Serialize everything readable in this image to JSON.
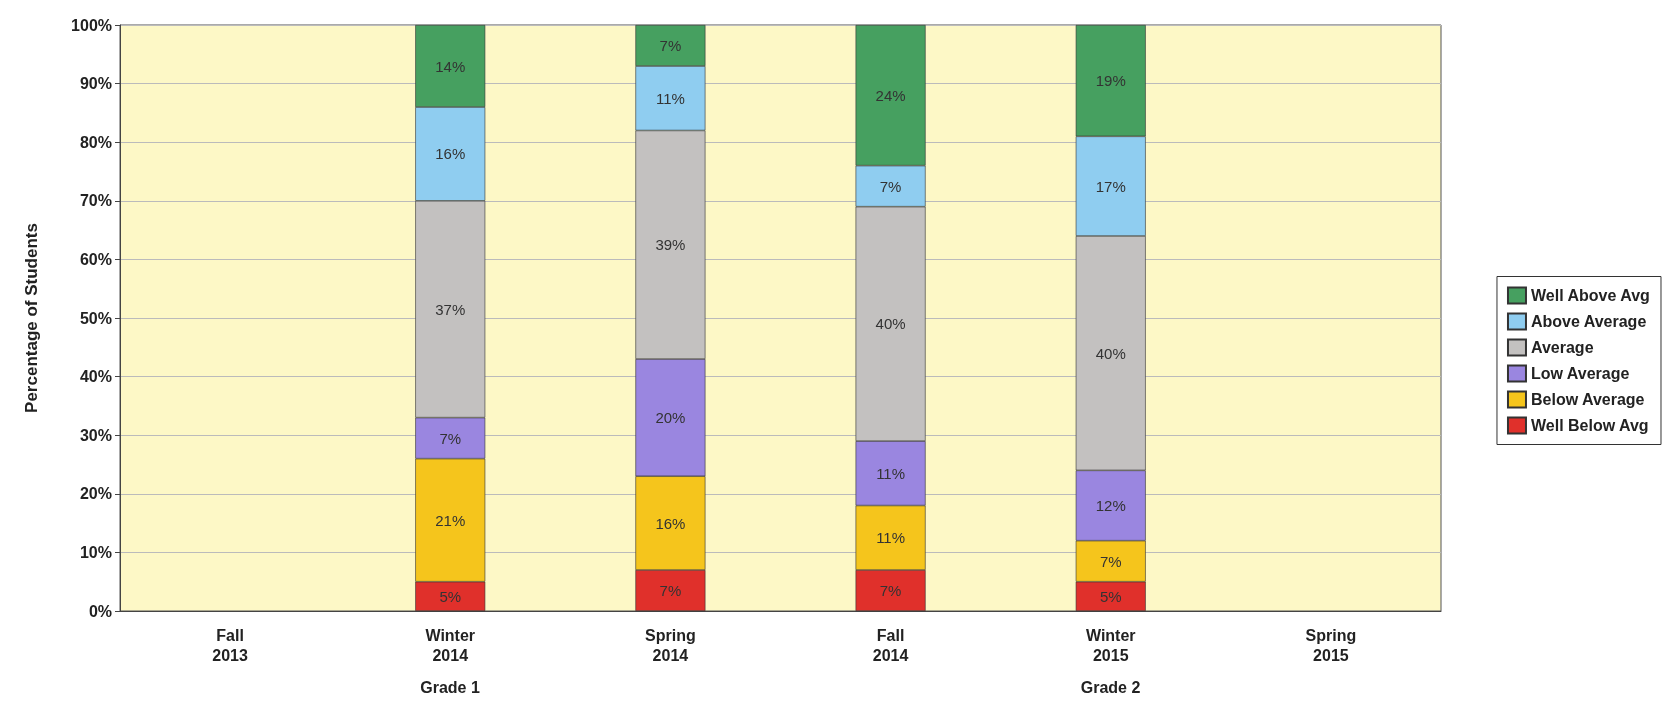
{
  "chart_data": {
    "type": "bar",
    "stacked": true,
    "ylabel": "Percentage of Students",
    "categories": [
      "Fall\n2013",
      "Winter\n2014",
      "Spring\n2014",
      "Fall\n2014",
      "Winter\n2015",
      "Spring\n2015"
    ],
    "series": [
      {
        "name": "Well Below Avg",
        "color": "#e0302b",
        "values": [
          null,
          5,
          7,
          7,
          5,
          null
        ],
        "value_labels": [
          null,
          "5%",
          "7%",
          "7%",
          "5%",
          null
        ]
      },
      {
        "name": "Below Average",
        "color": "#f5c51c",
        "values": [
          null,
          21,
          16,
          11,
          7,
          null
        ],
        "value_labels": [
          null,
          "21%",
          "16%",
          "11%",
          "7%",
          null
        ]
      },
      {
        "name": "Low Average",
        "color": "#9a86e0",
        "values": [
          null,
          7,
          20,
          11,
          12,
          null
        ],
        "value_labels": [
          null,
          "7%",
          "20%",
          "11%",
          "12%",
          null
        ]
      },
      {
        "name": "Average",
        "color": "#c3c1c0",
        "values": [
          null,
          37,
          39,
          40,
          40,
          null
        ],
        "value_labels": [
          null,
          "37%",
          "39%",
          "40%",
          "40%",
          null
        ]
      },
      {
        "name": "Above Average",
        "color": "#8fcdf0",
        "values": [
          null,
          16,
          11,
          7,
          17,
          null
        ],
        "value_labels": [
          null,
          "16%",
          "11%",
          "7%",
          "17%",
          null
        ]
      },
      {
        "name": "Well Above Avg",
        "color": "#46a060",
        "values": [
          null,
          14,
          7,
          24,
          19,
          null
        ],
        "value_labels": [
          null,
          "14%",
          "7%",
          "24%",
          "19%",
          null
        ]
      }
    ],
    "ylim": [
      0,
      100
    ],
    "yticks": [
      {
        "value": 0,
        "label": "0%"
      },
      {
        "value": 10,
        "label": "10%"
      },
      {
        "value": 20,
        "label": "20%"
      },
      {
        "value": 30,
        "label": "30%"
      },
      {
        "value": 40,
        "label": "40%"
      },
      {
        "value": 50,
        "label": "50%"
      },
      {
        "value": 60,
        "label": "60%"
      },
      {
        "value": 70,
        "label": "70%"
      },
      {
        "value": 80,
        "label": "80%"
      },
      {
        "value": 90,
        "label": "90%"
      },
      {
        "value": 100,
        "label": "100%"
      }
    ],
    "annotations": [
      "Grade 1",
      "Grade 2"
    ],
    "grid": "y",
    "legend": "right"
  }
}
